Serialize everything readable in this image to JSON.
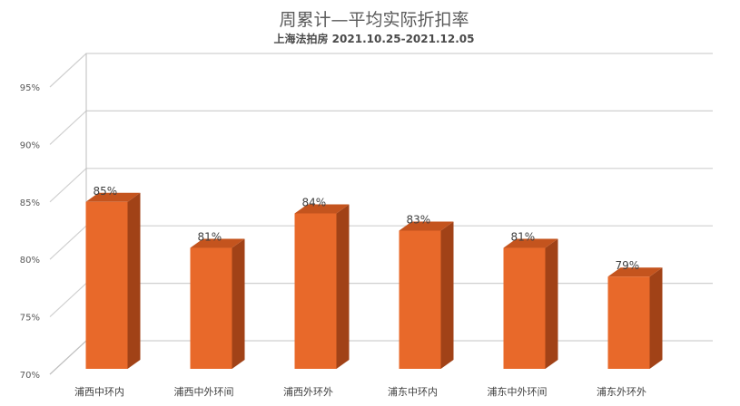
{
  "chart_data": {
    "type": "bar",
    "title": "周累计—平均实际折扣率",
    "subtitle": "上海法拍房  2021.10.25-2021.12.05",
    "categories": [
      "浦西中环内",
      "浦西中外环间",
      "浦西外环外",
      "浦东中环内",
      "浦东中外环间",
      "浦东外环外"
    ],
    "values": [
      85,
      81,
      84,
      82.5,
      81,
      78.5
    ],
    "data_labels": [
      "85%",
      "81%",
      "84%",
      "83%",
      "81%",
      "79%"
    ],
    "ylim": [
      70,
      95
    ],
    "yticks": [
      70,
      75,
      80,
      85,
      90,
      95
    ],
    "ytick_labels": [
      "70%",
      "75%",
      "80%",
      "85%",
      "90%",
      "95%"
    ],
    "xlabel": "",
    "ylabel": "",
    "grid": true,
    "legend": "none",
    "colors": {
      "bar_front": "#e8692a",
      "bar_side": "#a14217",
      "bar_top": "#c4541e"
    }
  }
}
